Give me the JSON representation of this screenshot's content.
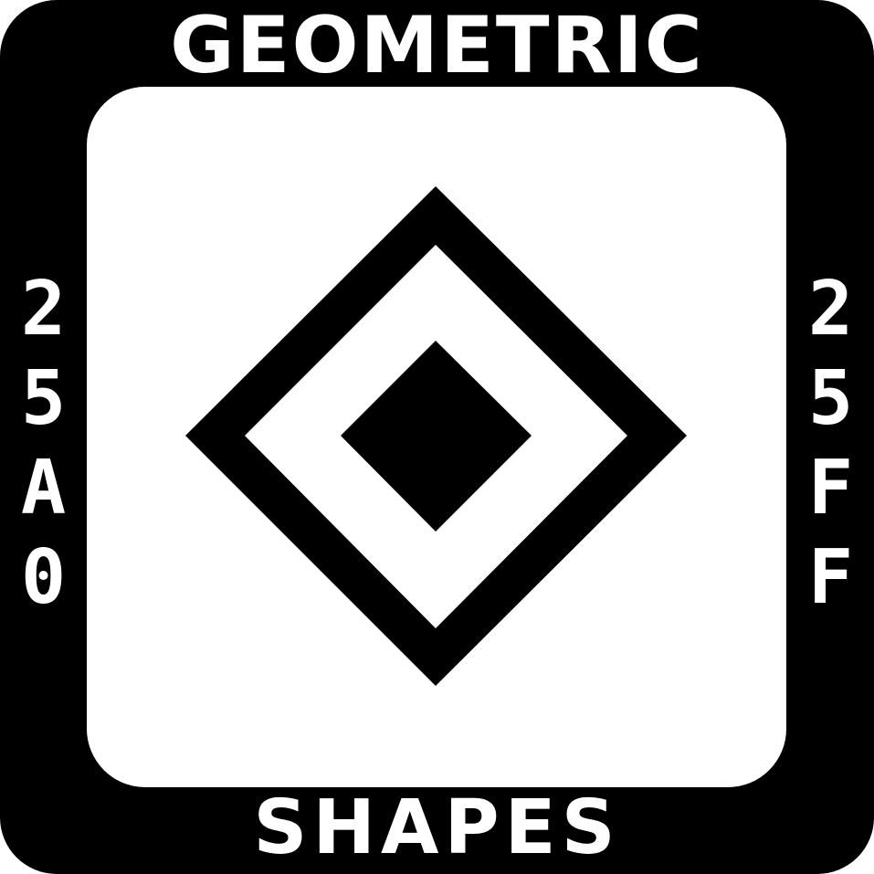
{
  "title_top": "GEOMETRIC",
  "title_bottom": "SHAPES",
  "range_start": "25A0",
  "range_end": "25FF",
  "colors": {
    "foreground": "#000000",
    "background": "#ffffff"
  },
  "emblem_icon": "diamond-in-diamond-icon"
}
